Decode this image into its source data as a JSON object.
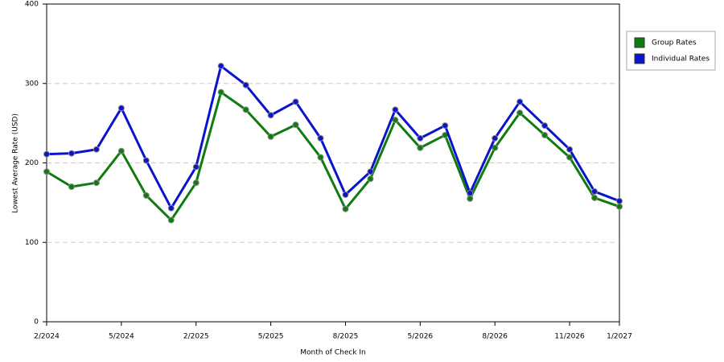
{
  "chart_data": {
    "type": "line",
    "x_label": "Month of Check In",
    "y_label": "Lowest Average Rate (USD)",
    "categories": [
      "2/2024",
      null,
      null,
      "5/2024",
      null,
      null,
      "2/2025",
      null,
      null,
      "5/2025",
      null,
      null,
      "8/2025",
      null,
      null,
      "5/2026",
      null,
      null,
      "8/2026",
      null,
      null,
      "11/2026",
      null,
      "1/2027"
    ],
    "series": [
      {
        "name": "Group Rates",
        "color": "#107c10",
        "values": [
          189,
          170,
          175,
          215,
          159,
          128,
          175,
          289,
          267,
          233,
          248,
          207,
          142,
          180,
          254,
          219,
          235,
          155,
          219,
          263,
          235,
          207,
          156,
          145
        ]
      },
      {
        "name": "Individual Rates",
        "color": "#0a14c8",
        "values": [
          211,
          212,
          217,
          269,
          203,
          143,
          195,
          322,
          298,
          260,
          277,
          231,
          160,
          189,
          267,
          231,
          247,
          162,
          231,
          277,
          247,
          217,
          164,
          152
        ]
      }
    ],
    "ylim": [
      0,
      400
    ],
    "yticks": [
      0,
      100,
      200,
      300,
      400
    ],
    "grid": true,
    "legend": "right"
  }
}
